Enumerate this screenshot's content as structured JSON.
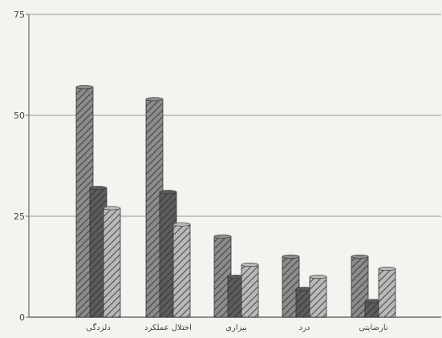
{
  "chart_data": {
    "type": "bar",
    "title": "",
    "xlabel": "",
    "ylabel": "",
    "ylim": [
      0,
      75
    ],
    "yticks": [
      0,
      25,
      50,
      75
    ],
    "grid": true,
    "legend": "none",
    "categories": [
      "دلزدگی",
      "اختلال عملکرد",
      "بیزاری",
      "درد",
      "نارضایتی"
    ],
    "series": [
      {
        "values": [
          57,
          54,
          20,
          15,
          15
        ]
      },
      {
        "values": [
          32,
          31,
          10,
          7,
          4
        ]
      },
      {
        "values": [
          27,
          23,
          13,
          10,
          12
        ]
      }
    ],
    "colors": {
      "background": "#f4f3ef",
      "grid": "#9a9a9a",
      "axis": "#6a6a6a",
      "series": [
        "#8c8c8c",
        "#5c5c5c",
        "#b9b9b9"
      ]
    }
  }
}
